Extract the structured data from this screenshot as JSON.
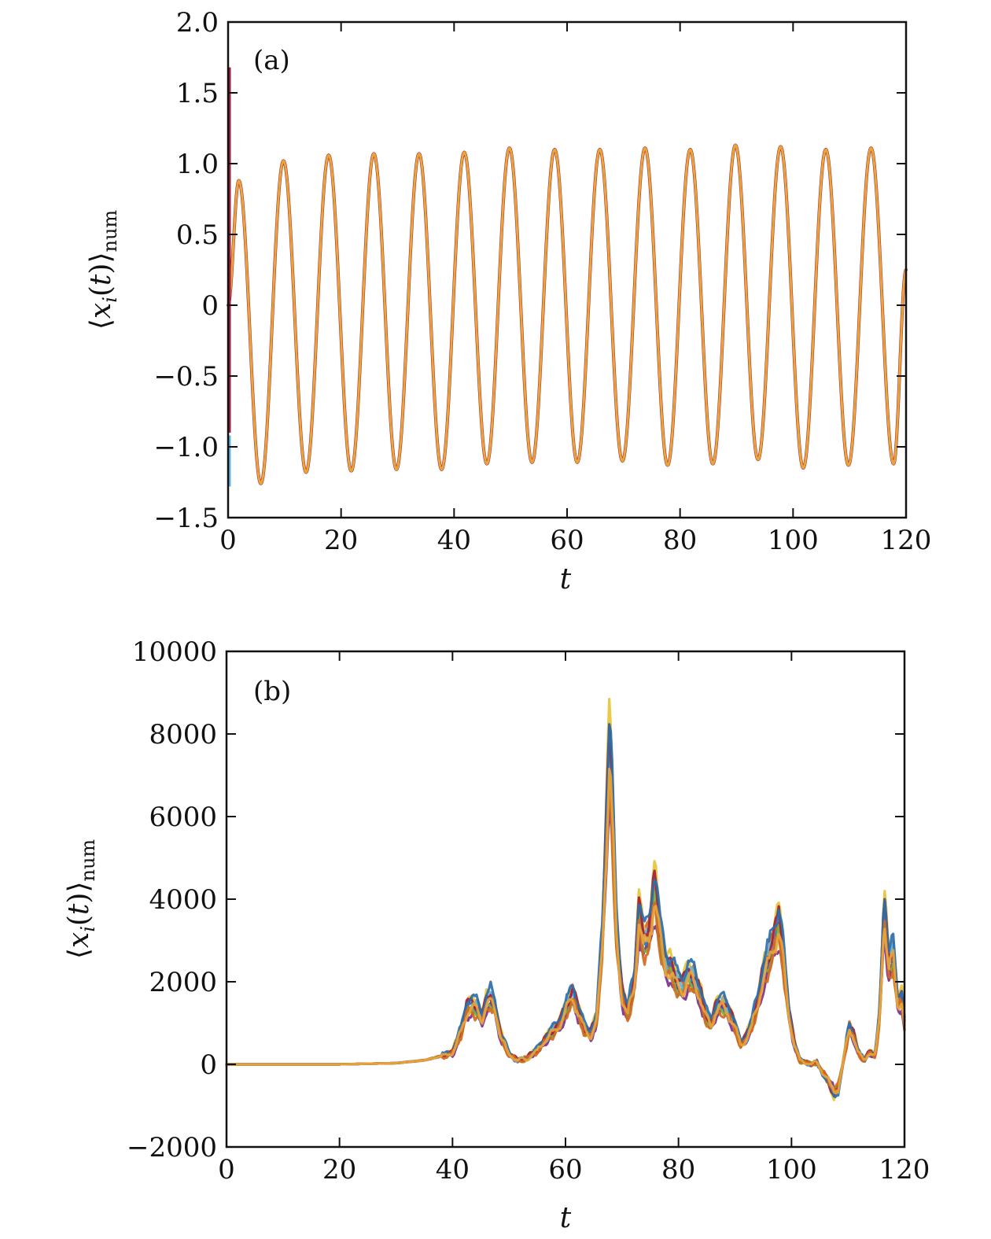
{
  "chart_data": [
    {
      "type": "line",
      "panel_label": "(a)",
      "xlabel": "t",
      "ylabel": "⟨x_i(t)⟩_num",
      "xlim": [
        0,
        120
      ],
      "ylim": [
        -1.5,
        2.0
      ],
      "x_ticks": [
        "0",
        "20",
        "40",
        "60",
        "80",
        "100",
        "120"
      ],
      "y_ticks": [
        "−1.5",
        "−1.0",
        "−0.5",
        "0",
        "0.5",
        "1.0",
        "1.5",
        "2.0"
      ],
      "y_tick_values": [
        -1.5,
        -1.0,
        -0.5,
        0,
        0.5,
        1.0,
        1.5,
        2.0
      ],
      "x_tick_values": [
        0,
        20,
        40,
        60,
        80,
        100,
        120
      ],
      "grid": false,
      "colors": [
        "#a31d3a",
        "#5fb6e3",
        "#e8a53a"
      ],
      "initial_spread": [
        {
          "color": "#a31d3a",
          "y_range": [
            -0.9,
            1.68
          ]
        },
        {
          "color": "#5fb6e3",
          "y_range": [
            -1.28,
            -0.92
          ]
        }
      ],
      "series": [
        {
          "period": 8.0,
          "extrema": [
            {
              "t": 0,
              "y": 0.0
            },
            {
              "t": 1.9,
              "y": 0.88
            },
            {
              "t": 5.8,
              "y": -1.26
            },
            {
              "t": 9.8,
              "y": 1.02
            },
            {
              "t": 13.8,
              "y": -1.18
            },
            {
              "t": 17.8,
              "y": 1.06
            },
            {
              "t": 21.8,
              "y": -1.17
            },
            {
              "t": 25.8,
              "y": 1.07
            },
            {
              "t": 29.8,
              "y": -1.16
            },
            {
              "t": 33.8,
              "y": 1.07
            },
            {
              "t": 37.8,
              "y": -1.16
            },
            {
              "t": 41.8,
              "y": 1.08
            },
            {
              "t": 45.8,
              "y": -1.12
            },
            {
              "t": 49.8,
              "y": 1.11
            },
            {
              "t": 53.8,
              "y": -1.11
            },
            {
              "t": 57.8,
              "y": 1.1
            },
            {
              "t": 61.8,
              "y": -1.11
            },
            {
              "t": 65.8,
              "y": 1.1
            },
            {
              "t": 69.8,
              "y": -1.1
            },
            {
              "t": 73.8,
              "y": 1.11
            },
            {
              "t": 77.8,
              "y": -1.13
            },
            {
              "t": 81.8,
              "y": 1.1
            },
            {
              "t": 85.8,
              "y": -1.12
            },
            {
              "t": 89.8,
              "y": 1.13
            },
            {
              "t": 93.8,
              "y": -1.09
            },
            {
              "t": 97.8,
              "y": 1.12
            },
            {
              "t": 101.8,
              "y": -1.15
            },
            {
              "t": 105.8,
              "y": 1.1
            },
            {
              "t": 109.8,
              "y": -1.13
            },
            {
              "t": 113.8,
              "y": 1.11
            },
            {
              "t": 117.8,
              "y": -1.12
            },
            {
              "t": 120,
              "y": 0.25
            }
          ]
        }
      ]
    },
    {
      "type": "line",
      "panel_label": "(b)",
      "xlabel": "t",
      "ylabel": "⟨x_i(t)⟩_num",
      "xlim": [
        0,
        120
      ],
      "ylim": [
        -2000,
        10000
      ],
      "x_ticks": [
        "0",
        "20",
        "40",
        "60",
        "80",
        "100",
        "120"
      ],
      "y_ticks": [
        "−2000",
        "0",
        "2000",
        "4000",
        "6000",
        "8000",
        "10000"
      ],
      "y_tick_values": [
        -2000,
        0,
        2000,
        4000,
        6000,
        8000,
        10000
      ],
      "x_tick_values": [
        0,
        20,
        40,
        60,
        80,
        100,
        120
      ],
      "grid": false,
      "base_curve": {
        "t": [
          0,
          20,
          30,
          35,
          38,
          40,
          41.5,
          42.5,
          43.5,
          44.5,
          45.2,
          46,
          46.8,
          47.5,
          48.5,
          50,
          51.5,
          53,
          55,
          57,
          59,
          60.5,
          61.3,
          62.2,
          63.5,
          64.5,
          65.5,
          66.5,
          67.2,
          67.8,
          68.3,
          69,
          70,
          71,
          72.2,
          73,
          73.8,
          74.8,
          75.8,
          76.8,
          77.8,
          78.8,
          79.8,
          80.8,
          81.8,
          82.8,
          83.8,
          84.8,
          85.8,
          86.8,
          87.8,
          88.8,
          89.8,
          91,
          92,
          93,
          94,
          95,
          96,
          97,
          97.8,
          98.5,
          99.5,
          100.5,
          101.5,
          102.5,
          103.5,
          104.5,
          105.5,
          106.5,
          107.5,
          108.3,
          109.2,
          110.2,
          111,
          111.8,
          112.8,
          113.8,
          114.8,
          115.6,
          116.4,
          117.2,
          118,
          118.8,
          119.5,
          120
        ],
        "y": [
          0,
          0,
          30,
          100,
          200,
          280,
          800,
          1350,
          1450,
          1350,
          1100,
          1500,
          1650,
          1400,
          700,
          250,
          100,
          130,
          350,
          700,
          1000,
          1500,
          1750,
          1300,
          850,
          750,
          1100,
          3000,
          5500,
          7800,
          6200,
          3300,
          1700,
          1250,
          2000,
          3700,
          3000,
          3200,
          4300,
          3100,
          2400,
          2300,
          2000,
          1900,
          2200,
          2100,
          1700,
          1200,
          1000,
          1400,
          1500,
          1300,
          1000,
          500,
          650,
          1000,
          1500,
          2200,
          2600,
          3100,
          3400,
          2700,
          1300,
          500,
          100,
          50,
          0,
          50,
          -200,
          -400,
          -700,
          -600,
          100,
          900,
          700,
          300,
          100,
          300,
          200,
          1200,
          3800,
          2400,
          2700,
          1500,
          1600,
          1000
        ]
      },
      "series": [
        {
          "color": "#2a6fad",
          "offset_seed": 1
        },
        {
          "color": "#d2691e",
          "offset_seed": 2
        },
        {
          "color": "#e6c43a",
          "offset_seed": 3
        },
        {
          "color": "#7b2f8c",
          "offset_seed": 4
        },
        {
          "color": "#7fae3a",
          "offset_seed": 5
        },
        {
          "color": "#5fb6e3",
          "offset_seed": 6
        },
        {
          "color": "#a31d3a",
          "offset_seed": 7
        },
        {
          "color": "#2a6fad",
          "offset_seed": 8
        },
        {
          "color": "#d2691e",
          "offset_seed": 9
        },
        {
          "color": "#e8a53a",
          "offset_seed": 10
        }
      ]
    }
  ]
}
